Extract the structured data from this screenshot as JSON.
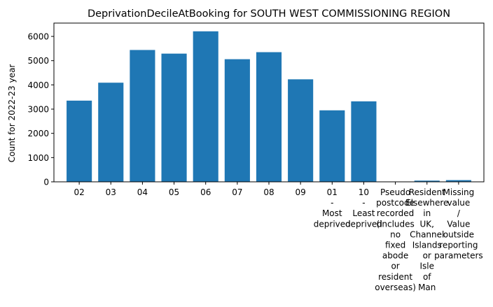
{
  "chart_data": {
    "type": "bar",
    "title": "DeprivationDecileAtBooking for SOUTH WEST COMMISSIONING REGION",
    "xlabel": "",
    "ylabel": "Count for 2022-23 year",
    "ylim": [
      0,
      6550
    ],
    "yticks": [
      0,
      1000,
      2000,
      3000,
      4000,
      5000,
      6000
    ],
    "grid": false,
    "bar_color": "#1f77b4",
    "categories": [
      [
        "02"
      ],
      [
        "03"
      ],
      [
        "04"
      ],
      [
        "05"
      ],
      [
        "06"
      ],
      [
        "07"
      ],
      [
        "08"
      ],
      [
        "09"
      ],
      [
        "01",
        "-",
        "Most",
        "deprived"
      ],
      [
        "10",
        "-",
        "Least",
        "deprived"
      ],
      [
        "Pseudo",
        "postcode",
        "recorded",
        "(includes",
        "no",
        "fixed",
        "abode",
        "or",
        "resident",
        "overseas)"
      ],
      [
        "Resident",
        "Elsewhere",
        "in",
        "UK,",
        "Channel",
        "Islands",
        "or",
        "Isle",
        "of",
        "Man"
      ],
      [
        "Missing",
        "value",
        "/",
        "Value",
        "outside",
        "reporting",
        "parameters"
      ]
    ],
    "values": [
      3350,
      4090,
      5440,
      5290,
      6210,
      5060,
      5350,
      4230,
      2950,
      3320,
      10,
      50,
      70
    ]
  }
}
